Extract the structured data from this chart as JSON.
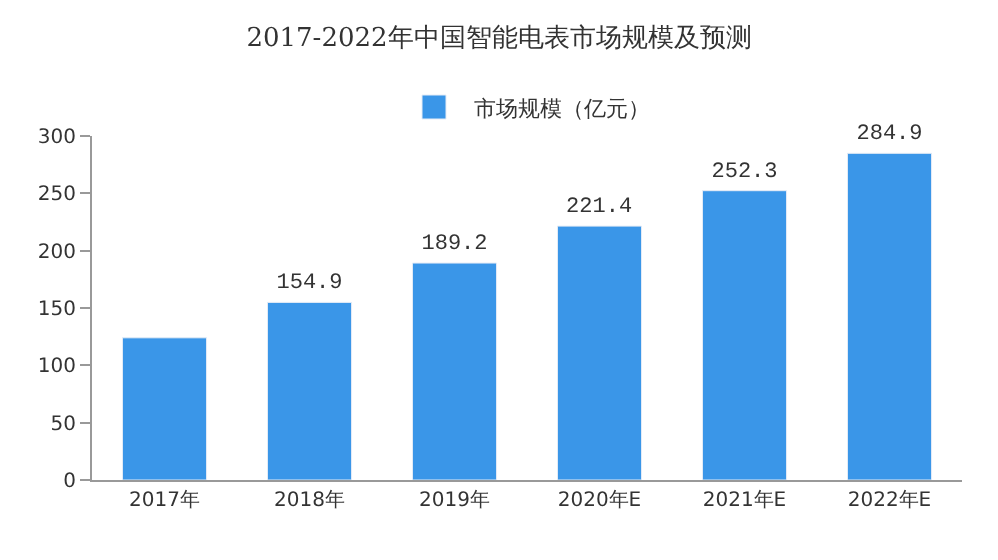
{
  "chart_data": {
    "type": "bar",
    "title": "2017-2022年中国智能电表市场规模及预测",
    "categories": [
      "2017年",
      "2018年",
      "2019年",
      "2020年E",
      "2021年E",
      "2022年E"
    ],
    "series": [
      {
        "name": "市场规模（亿元）",
        "color": "#3a96e8",
        "values": [
          124,
          154.9,
          189.2,
          221.4,
          252.3,
          284.9
        ],
        "value_labels": [
          null,
          "154.9",
          "189.2",
          "221.4",
          "252.3",
          "284.9"
        ]
      }
    ],
    "ylim": [
      0,
      300
    ],
    "yticks": [
      0,
      50,
      100,
      150,
      200,
      250,
      300
    ],
    "legend": "top"
  }
}
